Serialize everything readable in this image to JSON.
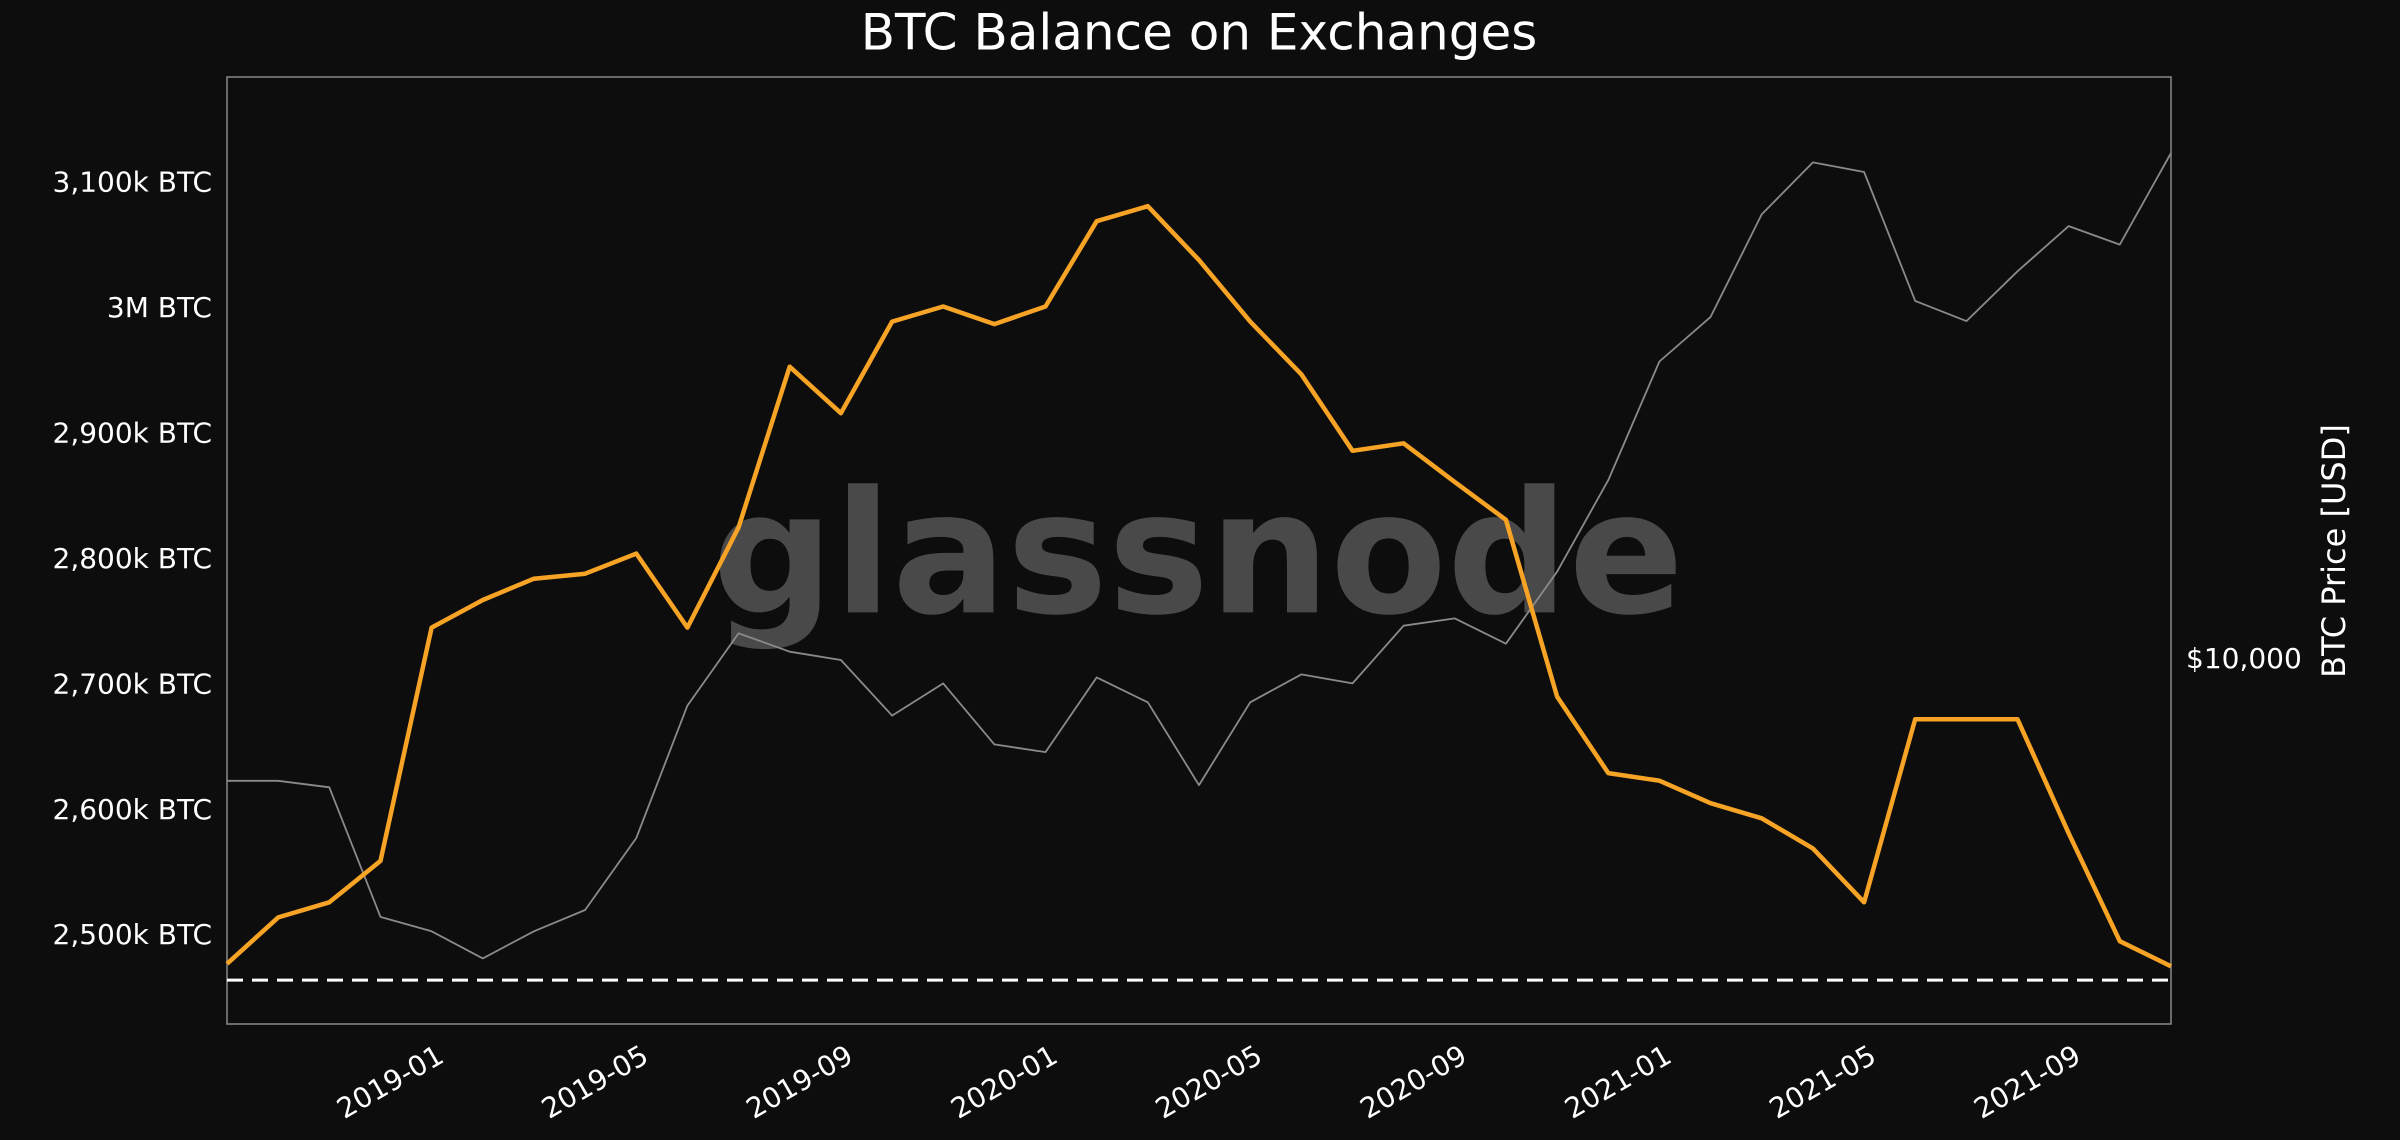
{
  "chart_data": {
    "type": "line",
    "title": "BTC Balance on Exchanges",
    "y2label": "BTC Price [USD]",
    "watermark": "glassnode",
    "x": [
      "2018-09",
      "2018-10",
      "2018-11",
      "2018-12",
      "2019-01",
      "2019-02",
      "2019-03",
      "2019-04",
      "2019-05",
      "2019-06",
      "2019-07",
      "2019-08",
      "2019-09",
      "2019-10",
      "2019-11",
      "2019-12",
      "2020-01",
      "2020-02",
      "2020-03",
      "2020-04",
      "2020-05",
      "2020-06",
      "2020-07",
      "2020-08",
      "2020-09",
      "2020-10",
      "2020-11",
      "2020-12",
      "2021-01",
      "2021-02",
      "2021-03",
      "2021-04",
      "2021-05",
      "2021-06",
      "2021-07",
      "2021-08",
      "2021-09",
      "2021-10",
      "2021-11"
    ],
    "series": [
      {
        "color": "#f7a325",
        "values": [
          2478000,
          2515000,
          2527000,
          2560000,
          2746000,
          2768000,
          2785000,
          2789000,
          2805000,
          2746000,
          2826000,
          2954000,
          2917000,
          2990000,
          3002000,
          2988000,
          3002000,
          3070000,
          3082000,
          3039000,
          2990000,
          2948000,
          2887000,
          2893000,
          2862000,
          2832000,
          2691000,
          2630000,
          2624000,
          2606000,
          2594000,
          2570000,
          2527000,
          2673000,
          2673000,
          2673000,
          2582000,
          2496000,
          2476000
        ]
      },
      {
        "color": "#8a8a8a",
        "axis": "y2",
        "values": [
          6500,
          6500,
          6350,
          4000,
          3800,
          3450,
          3800,
          4100,
          5300,
          8500,
          11000,
          10300,
          10000,
          8200,
          9200,
          7400,
          7200,
          9400,
          8600,
          6400,
          8600,
          9500,
          9200,
          11300,
          11600,
          10600,
          13700,
          19000,
          29000,
          34000,
          49000,
          59000,
          57000,
          36000,
          33500,
          40000,
          47000,
          44000,
          61000
        ]
      }
    ],
    "xlim": [
      "2018-09",
      "2021-11"
    ],
    "xticks": [
      "2019-01",
      "2019-05",
      "2019-09",
      "2020-01",
      "2020-05",
      "2020-09",
      "2021-01",
      "2021-05",
      "2021-09"
    ],
    "ylim": [
      2430000,
      3185000
    ],
    "yticks": [
      {
        "value": 2500000,
        "label": "2,500k BTC"
      },
      {
        "value": 2600000,
        "label": "2,600k BTC"
      },
      {
        "value": 2700000,
        "label": "2,700k BTC"
      },
      {
        "value": 2800000,
        "label": "2,800k BTC"
      },
      {
        "value": 2900000,
        "label": "2,900k BTC"
      },
      {
        "value": 3000000,
        "label": "3M BTC"
      },
      {
        "value": 3100000,
        "label": "3,100k BTC"
      }
    ],
    "y2lim": [
      2730,
      80000
    ],
    "y2scale": "log",
    "y2ticks": [
      {
        "value": 10000,
        "label": "$10,000"
      }
    ],
    "hlines": [
      {
        "value": 2465000,
        "color": "#ffffff",
        "style": "dashed"
      }
    ],
    "grid": false
  }
}
